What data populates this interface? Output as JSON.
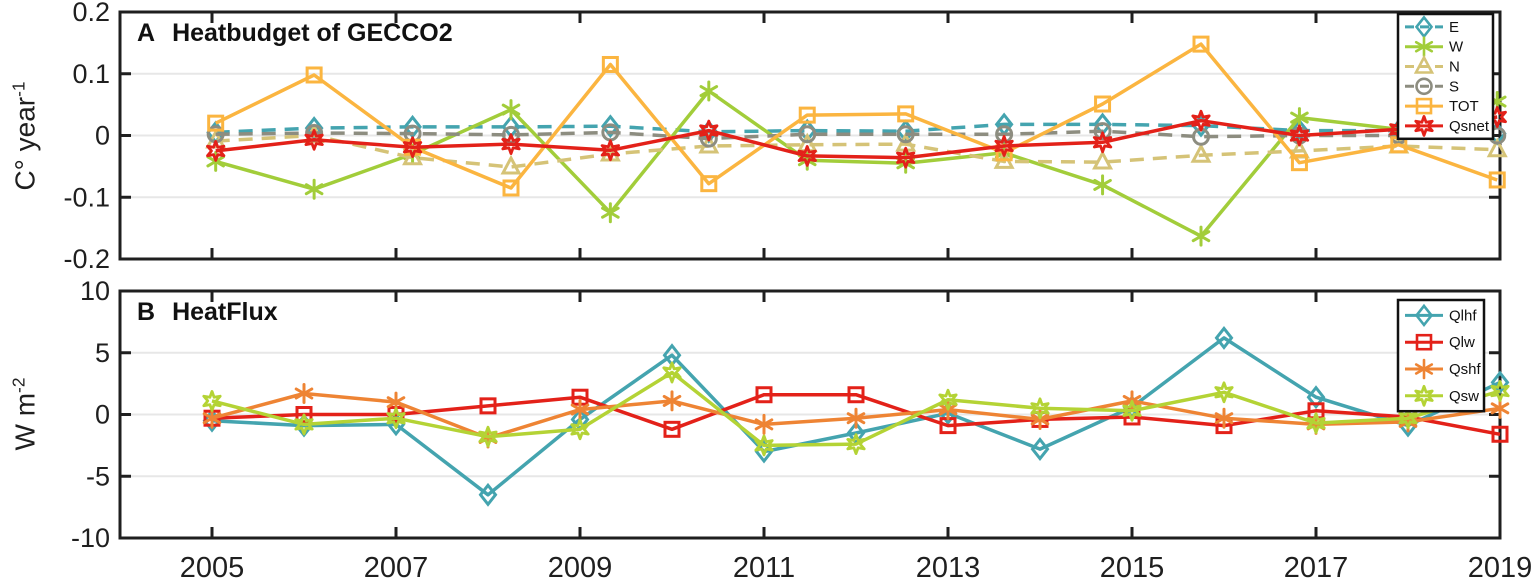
{
  "figure": {
    "panel_a": {
      "label": "A",
      "title": "Heatbudget of GECCO2",
      "ylabel_base": "C° year",
      "ylabel_sup": "-1"
    },
    "panel_b": {
      "label": "B",
      "title": "HeatFlux",
      "ylabel_base": "W m",
      "ylabel_sup": "-2"
    }
  },
  "chart_data": [
    {
      "type": "line",
      "panel_label": "A",
      "title": "Heatbudget of GECCO2",
      "ylabel": "C° year-1",
      "xlim": [
        2004,
        2019
      ],
      "ylim": [
        -0.2,
        0.2
      ],
      "yticks": [
        0.2,
        0.1,
        0,
        -0.1,
        -0.2
      ],
      "ytick_labels": [
        "0.2",
        "0.1",
        "0",
        "-0.1",
        "-0.2"
      ],
      "xticks": [
        2005,
        2007,
        2009,
        2011,
        2013,
        2015,
        2017,
        2019
      ],
      "xtick_labels": [],
      "show_xtick_labels": false,
      "grid": "horizontal",
      "legend_position": "upper-right",
      "x": [
        2005.04,
        2006.11,
        2007.18,
        2008.25,
        2009.33,
        2010.4,
        2011.47,
        2012.54,
        2013.61,
        2014.68,
        2015.75,
        2016.82,
        2017.9,
        2018.97
      ],
      "series": [
        {
          "name": "E",
          "color": "#44A4AF",
          "dash": true,
          "marker": "diamond",
          "values": [
            0.005,
            0.012,
            0.014,
            0.014,
            0.015,
            0.006,
            0.008,
            0.007,
            0.018,
            0.018,
            0.016,
            0.008,
            0.008,
            0.003
          ]
        },
        {
          "name": "W",
          "color": "#A2CD3A",
          "dash": false,
          "marker": "asterisk",
          "values": [
            -0.042,
            -0.087,
            -0.03,
            0.042,
            -0.125,
            0.072,
            -0.04,
            -0.045,
            -0.028,
            -0.08,
            -0.163,
            0.029,
            0.01,
            0.055
          ]
        },
        {
          "name": "N",
          "color": "#D5C377",
          "dash": true,
          "marker": "triangle",
          "values": [
            -0.009,
            0.0,
            -0.036,
            -0.051,
            -0.03,
            -0.017,
            -0.015,
            -0.014,
            -0.042,
            -0.043,
            -0.032,
            -0.025,
            -0.017,
            -0.023
          ]
        },
        {
          "name": "S",
          "color": "#8D8D80",
          "dash": true,
          "marker": "circle",
          "values": [
            0.002,
            0.004,
            0.003,
            0.001,
            0.005,
            -0.005,
            0.002,
            0.002,
            0.002,
            0.007,
            -0.002,
            0.0,
            0.0,
            0.0
          ]
        },
        {
          "name": "TOT",
          "color": "#FBB540",
          "dash": false,
          "marker": "square",
          "values": [
            0.02,
            0.098,
            -0.019,
            -0.085,
            0.115,
            -0.078,
            0.033,
            0.035,
            -0.028,
            0.051,
            0.148,
            -0.044,
            -0.015,
            -0.072
          ]
        },
        {
          "name": "Qsnet",
          "color": "#E32119",
          "dash": false,
          "marker": "hexagram",
          "values": [
            -0.025,
            -0.007,
            -0.019,
            -0.014,
            -0.024,
            0.008,
            -0.033,
            -0.036,
            -0.017,
            -0.011,
            0.024,
            0.0,
            0.01,
            0.03
          ]
        }
      ]
    },
    {
      "type": "line",
      "panel_label": "B",
      "title": "HeatFlux",
      "ylabel": "W m-2",
      "xlim": [
        2004,
        2019
      ],
      "ylim": [
        -10,
        10
      ],
      "yticks": [
        10,
        5,
        0,
        -5,
        -10
      ],
      "ytick_labels": [
        "10",
        "5",
        "0",
        "-5",
        "-10"
      ],
      "xticks": [
        2005,
        2007,
        2009,
        2011,
        2013,
        2015,
        2017,
        2019
      ],
      "xtick_labels": [
        "2005",
        "2007",
        "2009",
        "2011",
        "2013",
        "2015",
        "2017",
        "2019"
      ],
      "show_xtick_labels": true,
      "grid": "horizontal",
      "legend_position": "upper-right",
      "x": [
        2005,
        2006,
        2007,
        2008,
        2009,
        2010,
        2011,
        2012,
        2013,
        2014,
        2015,
        2016,
        2017,
        2018,
        2019
      ],
      "series": [
        {
          "name": "Qlhf",
          "color": "#44A4AF",
          "dash": false,
          "marker": "diamond",
          "values": [
            -0.5,
            -0.9,
            -0.8,
            -6.5,
            -0.4,
            4.8,
            -3.0,
            -1.5,
            0.1,
            -2.8,
            0.6,
            6.2,
            1.4,
            -0.9,
            2.6
          ]
        },
        {
          "name": "Qlw",
          "color": "#E32119",
          "dash": false,
          "marker": "square",
          "values": [
            -0.3,
            0.0,
            0.0,
            0.7,
            1.4,
            -1.2,
            1.6,
            1.6,
            -0.9,
            -0.4,
            -0.2,
            -0.9,
            0.3,
            -0.2,
            -1.6
          ]
        },
        {
          "name": "Qshf",
          "color": "#EE8434",
          "dash": false,
          "marker": "asterisk",
          "values": [
            -0.3,
            1.7,
            1.0,
            -1.9,
            0.4,
            1.1,
            -0.8,
            -0.3,
            0.4,
            -0.4,
            1.1,
            -0.3,
            -0.8,
            -0.6,
            0.5
          ]
        },
        {
          "name": "Qsw",
          "color": "#B4D335",
          "dash": false,
          "marker": "hexagram",
          "values": [
            1.1,
            -0.8,
            -0.3,
            -1.8,
            -1.2,
            3.4,
            -2.5,
            -2.4,
            1.2,
            0.5,
            0.3,
            1.8,
            -0.7,
            -0.3,
            1.9
          ]
        }
      ]
    }
  ],
  "style": {
    "axis_color": "#1f1f1f",
    "grid_color": "#e7e7e7",
    "background": "#ffffff"
  }
}
